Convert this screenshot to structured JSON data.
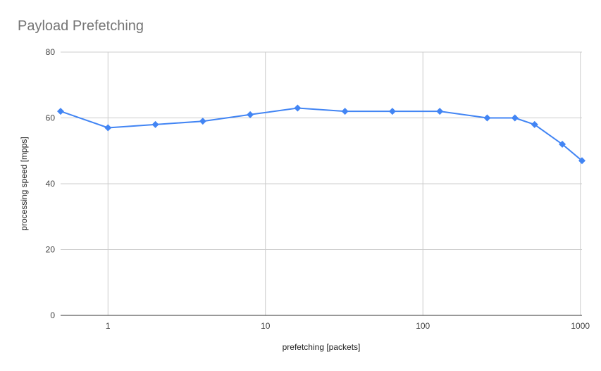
{
  "chart_data": {
    "type": "line",
    "title": "Payload Prefetching",
    "xlabel": "prefetching [packets]",
    "ylabel": "processing speed [mpps]",
    "x_scale": "log",
    "xlim": [
      0.5,
      1024
    ],
    "ylim": [
      0,
      80
    ],
    "x_ticks": [
      1,
      10,
      100,
      1000
    ],
    "x_tick_labels": [
      "1",
      "10",
      "100",
      "1000"
    ],
    "y_ticks": [
      0,
      20,
      40,
      60,
      80
    ],
    "y_tick_labels": [
      "0",
      "20",
      "40",
      "60",
      "80"
    ],
    "grid": true,
    "series": [
      {
        "color": "#4285F4",
        "marker": "diamond",
        "x": [
          0.5,
          1,
          2,
          4,
          8,
          16,
          32,
          64,
          128,
          256,
          384,
          512,
          768,
          1024
        ],
        "y": [
          62,
          57,
          58,
          59,
          61,
          63,
          62,
          62,
          62,
          60,
          60,
          58,
          52,
          47
        ]
      }
    ]
  }
}
